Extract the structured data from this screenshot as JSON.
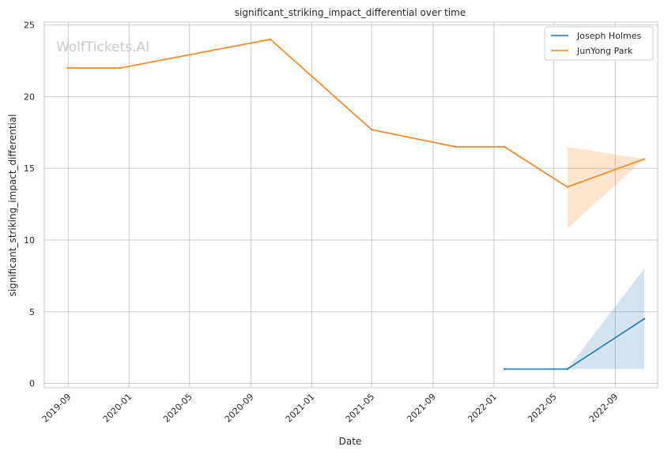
{
  "chart_data": {
    "type": "line",
    "title": "significant_striking_impact_differential over time",
    "xlabel": "Date",
    "ylabel": "significant_striking_impact_differential",
    "watermark": "WolfTickets.AI",
    "x_ticks": [
      "2019-09",
      "2020-01",
      "2020-05",
      "2020-09",
      "2021-01",
      "2021-05",
      "2021-09",
      "2022-01",
      "2022-05",
      "2022-09"
    ],
    "y_ticks": [
      0,
      5,
      10,
      15,
      20,
      25
    ],
    "xlim": [
      "2019-07-15",
      "2022-11-25"
    ],
    "ylim": [
      -0.3,
      25.2
    ],
    "grid": true,
    "legend_position": "top-right",
    "series": [
      {
        "name": "Joseph Holmes",
        "color": "#1f77b4",
        "points": [
          {
            "x": "2022-01-22",
            "y": 1.0
          },
          {
            "x": "2022-05-28",
            "y": 1.0
          },
          {
            "x": "2022-10-29",
            "y": 4.5
          }
        ],
        "band": [
          {
            "x": "2022-05-28",
            "lo": 1.0,
            "hi": 1.0
          },
          {
            "x": "2022-10-29",
            "lo": 1.0,
            "hi": 8.0
          }
        ]
      },
      {
        "name": "JunYong Park",
        "color": "#ff7f0e",
        "points": [
          {
            "x": "2019-08-31",
            "y": 22.0
          },
          {
            "x": "2019-12-14",
            "y": 22.0
          },
          {
            "x": "2020-10-10",
            "y": 24.0
          },
          {
            "x": "2021-05-01",
            "y": 17.7
          },
          {
            "x": "2021-10-16",
            "y": 16.5
          },
          {
            "x": "2022-01-22",
            "y": 16.5
          },
          {
            "x": "2022-05-28",
            "y": 13.7
          },
          {
            "x": "2022-10-29",
            "y": 15.65
          }
        ],
        "band": [
          {
            "x": "2022-05-28",
            "lo": 10.8,
            "hi": 16.5
          },
          {
            "x": "2022-10-29",
            "lo": 15.65,
            "hi": 15.65
          }
        ]
      }
    ]
  }
}
